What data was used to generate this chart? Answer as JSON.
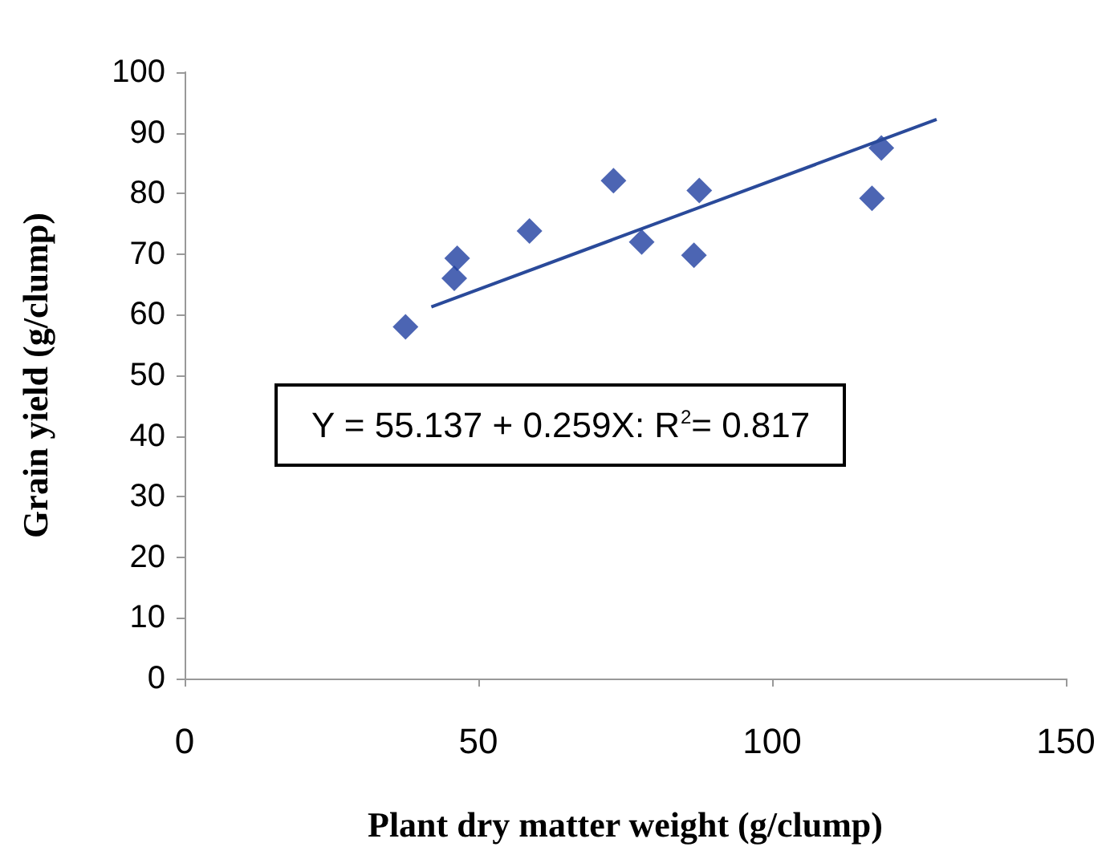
{
  "chart_data": {
    "type": "scatter",
    "xlabel": "Plant dry matter weight (g/clump)",
    "ylabel": "Grain yield (g/clump)",
    "xlim": [
      0,
      150
    ],
    "xticks": [
      0,
      50,
      100,
      150
    ],
    "ylim": [
      0,
      100
    ],
    "yticks": [
      0,
      10,
      20,
      30,
      40,
      50,
      60,
      70,
      80,
      90,
      100
    ],
    "grid": false,
    "marker": "diamond",
    "series": [
      {
        "color": "#1f3fa0",
        "x": [
          37.6,
          46.4,
          45.9,
          58.7,
          73,
          77.8,
          87.6,
          86.7,
          117,
          118.6
        ],
        "values": [
          58,
          69.3,
          66,
          73.8,
          82.1,
          72,
          80.5,
          69.8,
          79.2,
          87.5
        ]
      },
      {
        "type": "line",
        "marker": "none",
        "color": "#2a4a9a",
        "x": [
          42,
          128
        ],
        "values": [
          61.3,
          92.2
        ]
      }
    ],
    "annotations": [
      "Y = 55.137 + 0.259X: R$^{2}$= 0.817"
    ]
  }
}
